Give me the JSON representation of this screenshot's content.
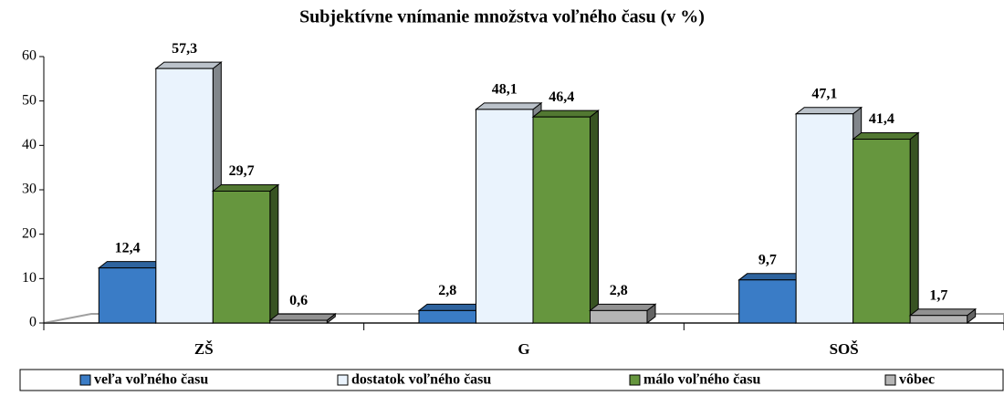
{
  "chart_data": {
    "type": "bar",
    "title": "Subjektívne vnímanie množstva voľného času (v %)",
    "categories": [
      "ZŠ",
      "G",
      "SOŠ"
    ],
    "series": [
      {
        "name": "veľa voľného času",
        "color": "#3a7cc6",
        "values": [
          12.4,
          2.8,
          9.7
        ],
        "value_labels": [
          "12,4",
          "2,8",
          "9,7"
        ]
      },
      {
        "name": "dostatok voľného času",
        "color": "#eaf3fd",
        "values": [
          57.3,
          48.1,
          47.1
        ],
        "value_labels": [
          "57,3",
          "48,1",
          "47,1"
        ]
      },
      {
        "name": "málo voľného času",
        "color": "#66963e",
        "values": [
          29.7,
          46.4,
          41.4
        ],
        "value_labels": [
          "29,7",
          "46,4",
          "41,4"
        ]
      },
      {
        "name": "vôbec",
        "color": "#b5b5b5",
        "values": [
          0.6,
          2.8,
          1.7
        ],
        "value_labels": [
          "0,6",
          "2,8",
          "1,7"
        ]
      }
    ],
    "ylim": [
      0,
      60
    ],
    "yticks": [
      0,
      10,
      20,
      30,
      40,
      50,
      60
    ],
    "legend": "bottom"
  }
}
